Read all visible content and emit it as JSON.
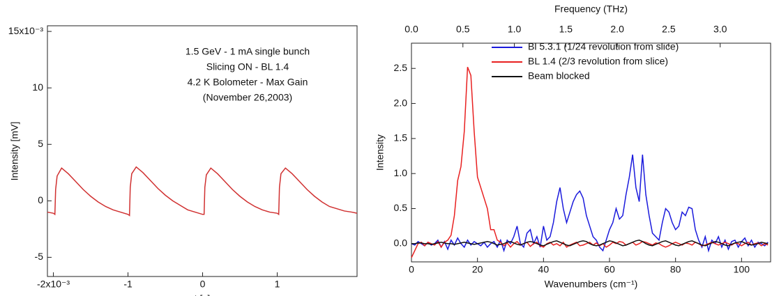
{
  "chart_data": [
    {
      "type": "line",
      "xlabel": "t [s]",
      "ylabel": "Intensity [mV]",
      "annotations": [
        "1.5 GeV -  1 mA single bunch",
        "Slicing ON - BL 1.4",
        "4.2 K Bolometer - Max Gain",
        "(November 26,2003)"
      ],
      "x": [
        -2.08,
        -2.0,
        -1.98,
        -1.97,
        -1.95,
        -1.89,
        -1.8,
        -1.7,
        -1.6,
        -1.5,
        -1.4,
        -1.3,
        -1.2,
        -1.1,
        -1.0,
        -0.98,
        -0.97,
        -0.95,
        -0.89,
        -0.8,
        -0.7,
        -0.6,
        -0.5,
        -0.4,
        -0.3,
        -0.2,
        -0.1,
        0.0,
        0.02,
        0.03,
        0.05,
        0.11,
        0.2,
        0.3,
        0.4,
        0.5,
        0.6,
        0.7,
        0.8,
        0.9,
        1.0,
        1.02,
        1.03,
        1.05,
        1.11,
        1.2,
        1.3,
        1.4,
        1.5,
        1.6,
        1.7,
        1.8,
        1.9,
        2.0,
        2.07
      ],
      "series": [
        {
          "color": "#d03030",
          "values": [
            -1.0,
            -1.1,
            -1.2,
            1.0,
            2.2,
            2.9,
            2.4,
            1.7,
            1.0,
            0.4,
            -0.1,
            -0.5,
            -0.8,
            -1.0,
            -1.2,
            -1.3,
            1.2,
            2.4,
            3.0,
            2.5,
            1.8,
            1.1,
            0.5,
            0.0,
            -0.4,
            -0.8,
            -1.0,
            -1.2,
            -1.2,
            1.2,
            2.3,
            2.9,
            2.4,
            1.7,
            1.0,
            0.4,
            -0.1,
            -0.5,
            -0.8,
            -1.0,
            -1.1,
            -1.2,
            1.2,
            2.4,
            2.9,
            2.4,
            1.7,
            1.0,
            0.4,
            -0.1,
            -0.5,
            -0.7,
            -0.9,
            -1.0,
            -1.1
          ]
        }
      ],
      "xlim": [
        -2.08,
        2.07
      ],
      "ylim": [
        -6.7,
        15.5
      ],
      "xticks": [
        {
          "value": -2,
          "label": "-2x10⁻³"
        },
        -1,
        0,
        1
      ],
      "yticks": [
        -5,
        0,
        5,
        10,
        {
          "value": 15,
          "label": "15x10⁻³"
        }
      ]
    },
    {
      "type": "line",
      "xlabel": "Wavenumbers (cm⁻¹)",
      "ylabel": "Intensity",
      "x2label": "Frequency (THz)",
      "x": [
        0,
        1,
        2,
        3,
        4,
        5,
        6,
        7,
        8,
        9,
        10,
        11,
        12,
        13,
        14,
        15,
        16,
        17,
        18,
        19,
        20,
        21,
        22,
        23,
        24,
        25,
        26,
        27,
        28,
        29,
        30,
        31,
        32,
        33,
        34,
        35,
        36,
        37,
        38,
        39,
        40,
        41,
        42,
        43,
        44,
        45,
        46,
        47,
        48,
        49,
        50,
        51,
        52,
        53,
        54,
        55,
        56,
        57,
        58,
        59,
        60,
        61,
        62,
        63,
        64,
        65,
        66,
        67,
        68,
        69,
        70,
        71,
        72,
        73,
        74,
        75,
        76,
        77,
        78,
        79,
        80,
        81,
        82,
        83,
        84,
        85,
        86,
        87,
        88,
        89,
        90,
        91,
        92,
        93,
        94,
        95,
        96,
        97,
        98,
        99,
        100,
        101,
        102,
        103,
        104,
        105,
        106,
        107,
        108
      ],
      "series": [
        {
          "name": "Bl 5.3.1 (1/24 revolution from slice)",
          "color": "#1a1adc",
          "values": [
            0,
            -0.02,
            0.03,
            0,
            -0.03,
            0.02,
            -0.02,
            0,
            0.05,
            -0.05,
            0.03,
            -0.08,
            0.05,
            -0.02,
            0.08,
            0,
            -0.05,
            0.05,
            -0.02,
            0.03,
            0,
            -0.03,
            0.02,
            -0.05,
            0,
            0.03,
            -0.05,
            0.05,
            -0.1,
            0.05,
            0,
            0.1,
            0.25,
            0,
            -0.05,
            0.15,
            0.2,
            0,
            0.1,
            -0.05,
            0.25,
            0.05,
            0.1,
            0.3,
            0.6,
            0.8,
            0.5,
            0.3,
            0.45,
            0.6,
            0.7,
            0.75,
            0.65,
            0.4,
            0.25,
            0.1,
            0.05,
            -0.05,
            -0.1,
            0.05,
            0.2,
            0.3,
            0.5,
            0.35,
            0.4,
            0.7,
            0.95,
            1.27,
            0.8,
            0.6,
            1.27,
            0.7,
            0.4,
            0.15,
            0.1,
            0.05,
            0.3,
            0.5,
            0.45,
            0.3,
            0.2,
            0.25,
            0.45,
            0.4,
            0.52,
            0.5,
            0.2,
            0.05,
            -0.05,
            0.1,
            -0.1,
            0.05,
            0,
            0.1,
            -0.05,
            0.05,
            -0.08,
            0.03,
            0.05,
            -0.05,
            0.03,
            0.08,
            -0.03,
            0.05,
            -0.05,
            0.02,
            0,
            -0.03,
            0.02
          ]
        },
        {
          "name": "BL 1.4 (2/3 revolution from slice)",
          "color": "#e82020",
          "values": [
            -0.2,
            -0.1,
            0,
            0.02,
            -0.03,
            0.02,
            0,
            -0.02,
            0.03,
            -0.05,
            0.02,
            0.05,
            0.12,
            0.4,
            0.9,
            1.1,
            1.6,
            2.52,
            2.4,
            1.6,
            0.95,
            0.8,
            0.65,
            0.5,
            0.2,
            0.2,
            0.05,
            0.02,
            -0.03,
            0.01,
            -0.05,
            0,
            0.03,
            -0.02,
            0,
            0.02,
            -0.04,
            0,
            0.02,
            -0.03,
            -0.05,
            0,
            0.02,
            -0.02,
            0,
            -0.03,
            0.02,
            -0.05,
            -0.02,
            0,
            0.02,
            -0.03,
            -0.02,
            0,
            0.02,
            -0.02,
            0.01,
            -0.03,
            0,
            -0.05,
            -0.02,
            0.02,
            0,
            0.03,
            0.02,
            -0.02,
            0,
            0.02,
            -0.02,
            0,
            0.03,
            0.02,
            0,
            -0.02,
            0.01,
            0,
            -0.03,
            -0.05,
            -0.03,
            0,
            0.02,
            0,
            -0.02,
            0.01,
            0,
            -0.02,
            0.02,
            0,
            -0.03,
            -0.02,
            0,
            0.02,
            0,
            -0.02,
            0,
            0.02,
            0,
            -0.02,
            0.01,
            0,
            -0.03,
            0,
            0.02,
            -0.02,
            0,
            0.01,
            -0.03,
            0,
            -0.02
          ]
        },
        {
          "name": "Beam blocked",
          "color": "#111111",
          "values": [
            0,
            0,
            0.01,
            0.01,
            0,
            0,
            -0.01,
            0,
            0.01,
            0.02,
            0.01,
            0,
            0,
            -0.01,
            0,
            0.01,
            0.02,
            0.01,
            0,
            -0.01,
            0,
            0.01,
            0.02,
            0.03,
            0.02,
            0,
            -0.02,
            -0.01,
            0,
            0.02,
            0.03,
            0.01,
            -0.01,
            -0.02,
            0,
            0.02,
            0.03,
            0.02,
            0,
            -0.02,
            -0.03,
            -0.01,
            0.01,
            0.03,
            0.04,
            0.02,
            0,
            -0.02,
            -0.03,
            -0.01,
            0.01,
            0.03,
            0.04,
            0.03,
            0,
            -0.02,
            -0.03,
            -0.02,
            0,
            0.02,
            0.04,
            0.03,
            0.01,
            -0.01,
            -0.03,
            -0.02,
            0,
            0.02,
            0.04,
            0.05,
            0.03,
            0,
            -0.02,
            -0.03,
            -0.01,
            0.01,
            0.03,
            0.04,
            0.02,
            0,
            -0.02,
            -0.03,
            -0.01,
            0.01,
            0.03,
            0.04,
            0.02,
            0,
            -0.02,
            -0.03,
            -0.01,
            0.01,
            0.03,
            0.02,
            0,
            -0.02,
            -0.03,
            -0.01,
            0.01,
            0.02,
            0.03,
            0.01,
            -0.01,
            -0.02,
            -0.01,
            0,
            0.02,
            0.01,
            0
          ]
        }
      ],
      "xlim": [
        0,
        108.8
      ],
      "ylim": [
        -0.26,
        2.86
      ],
      "x2lim": [
        0,
        3.49
      ],
      "xticks": [
        0,
        20,
        40,
        60,
        80,
        100
      ],
      "yticks": [
        {
          "value": 0,
          "label": "0.0"
        },
        0.5,
        {
          "value": 1,
          "label": "1.0"
        },
        1.5,
        {
          "value": 2,
          "label": "2.0"
        },
        2.5
      ],
      "x2ticks": [
        {
          "value": 0,
          "label": "0.0"
        },
        0.5,
        {
          "value": 1,
          "label": "1.0"
        },
        1.5,
        {
          "value": 2,
          "label": "2.0"
        },
        2.5,
        {
          "value": 3,
          "label": "3.0"
        }
      ],
      "legend": "upper left"
    }
  ]
}
